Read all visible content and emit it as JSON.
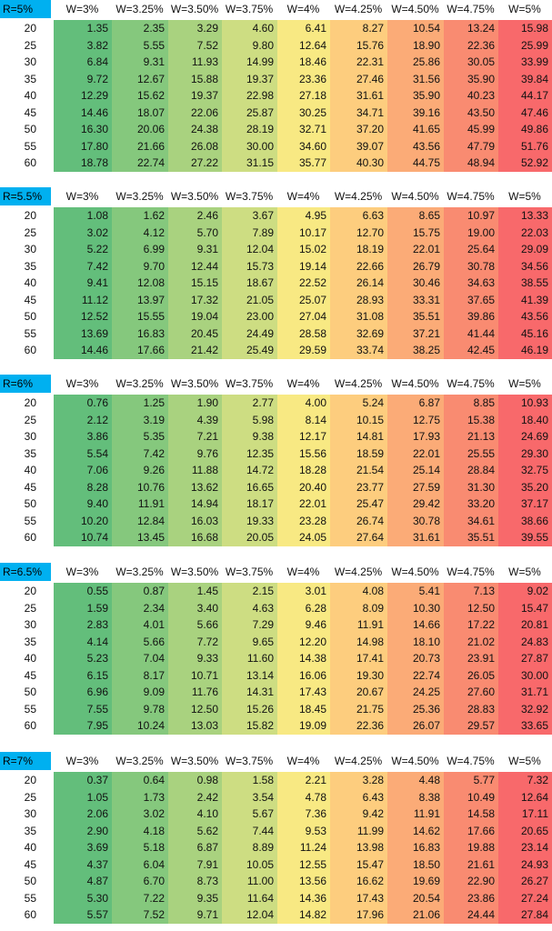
{
  "chart_data": [
    {
      "type": "heatmap",
      "title": "R=5%",
      "columns": [
        "W=3%",
        "W=3.25%",
        "W=3.50%",
        "W=3.75%",
        "W=4%",
        "W=4.25%",
        "W=4.50%",
        "W=4.75%",
        "W=5%"
      ],
      "rows": [
        "20",
        "25",
        "30",
        "35",
        "40",
        "45",
        "50",
        "55",
        "60"
      ],
      "values": [
        [
          "1.35",
          "2.35",
          "3.29",
          "4.60",
          "6.41",
          "8.27",
          "10.54",
          "13.24",
          "15.98"
        ],
        [
          "3.82",
          "5.55",
          "7.52",
          "9.80",
          "12.64",
          "15.76",
          "18.90",
          "22.36",
          "25.99"
        ],
        [
          "6.84",
          "9.31",
          "11.93",
          "14.99",
          "18.46",
          "22.31",
          "25.86",
          "30.05",
          "33.99"
        ],
        [
          "9.72",
          "12.67",
          "15.88",
          "19.37",
          "23.36",
          "27.46",
          "31.56",
          "35.90",
          "39.84"
        ],
        [
          "12.29",
          "15.62",
          "19.37",
          "22.98",
          "27.18",
          "31.61",
          "35.90",
          "40.23",
          "44.17"
        ],
        [
          "14.46",
          "18.07",
          "22.06",
          "25.87",
          "30.25",
          "34.71",
          "39.16",
          "43.50",
          "47.46"
        ],
        [
          "16.30",
          "20.06",
          "24.38",
          "28.19",
          "32.71",
          "37.20",
          "41.65",
          "45.99",
          "49.86"
        ],
        [
          "17.80",
          "21.66",
          "26.08",
          "30.00",
          "34.60",
          "39.07",
          "43.56",
          "47.79",
          "51.76"
        ],
        [
          "18.78",
          "22.74",
          "27.22",
          "31.15",
          "35.77",
          "40.30",
          "44.75",
          "48.94",
          "52.92"
        ]
      ]
    },
    {
      "type": "heatmap",
      "title": "R=5.5%",
      "columns": [
        "W=3%",
        "W=3.25%",
        "W=3.50%",
        "W=3.75%",
        "W=4%",
        "W=4.25%",
        "W=4.50%",
        "W=4.75%",
        "W=5%"
      ],
      "rows": [
        "20",
        "25",
        "30",
        "35",
        "40",
        "45",
        "50",
        "55",
        "60"
      ],
      "values": [
        [
          "1.08",
          "1.62",
          "2.46",
          "3.67",
          "4.95",
          "6.63",
          "8.65",
          "10.97",
          "13.33"
        ],
        [
          "3.02",
          "4.12",
          "5.70",
          "7.89",
          "10.17",
          "12.70",
          "15.75",
          "19.00",
          "22.03"
        ],
        [
          "5.22",
          "6.99",
          "9.31",
          "12.04",
          "15.02",
          "18.19",
          "22.01",
          "25.64",
          "29.09"
        ],
        [
          "7.42",
          "9.70",
          "12.44",
          "15.73",
          "19.14",
          "22.66",
          "26.79",
          "30.78",
          "34.56"
        ],
        [
          "9.41",
          "12.08",
          "15.15",
          "18.67",
          "22.52",
          "26.14",
          "30.46",
          "34.63",
          "38.55"
        ],
        [
          "11.12",
          "13.97",
          "17.32",
          "21.05",
          "25.07",
          "28.93",
          "33.31",
          "37.65",
          "41.39"
        ],
        [
          "12.52",
          "15.55",
          "19.04",
          "23.00",
          "27.04",
          "31.08",
          "35.51",
          "39.86",
          "43.56"
        ],
        [
          "13.69",
          "16.83",
          "20.45",
          "24.49",
          "28.58",
          "32.69",
          "37.21",
          "41.44",
          "45.16"
        ],
        [
          "14.46",
          "17.66",
          "21.42",
          "25.49",
          "29.59",
          "33.74",
          "38.25",
          "42.45",
          "46.19"
        ]
      ]
    },
    {
      "type": "heatmap",
      "title": "R=6%",
      "columns": [
        "W=3%",
        "W=3.25%",
        "W=3.50%",
        "W=3.75%",
        "W=4%",
        "W=4.25%",
        "W=4.50%",
        "W=4.75%",
        "W=5%"
      ],
      "rows": [
        "20",
        "25",
        "30",
        "35",
        "40",
        "45",
        "50",
        "55",
        "60"
      ],
      "values": [
        [
          "0.76",
          "1.25",
          "1.90",
          "2.77",
          "4.00",
          "5.24",
          "6.87",
          "8.85",
          "10.93"
        ],
        [
          "2.12",
          "3.19",
          "4.39",
          "5.98",
          "8.14",
          "10.15",
          "12.75",
          "15.38",
          "18.40"
        ],
        [
          "3.86",
          "5.35",
          "7.21",
          "9.38",
          "12.17",
          "14.81",
          "17.93",
          "21.13",
          "24.69"
        ],
        [
          "5.54",
          "7.42",
          "9.76",
          "12.35",
          "15.56",
          "18.59",
          "22.01",
          "25.55",
          "29.30"
        ],
        [
          "7.06",
          "9.26",
          "11.88",
          "14.72",
          "18.28",
          "21.54",
          "25.14",
          "28.84",
          "32.75"
        ],
        [
          "8.28",
          "10.76",
          "13.62",
          "16.65",
          "20.40",
          "23.77",
          "27.59",
          "31.30",
          "35.20"
        ],
        [
          "9.40",
          "11.91",
          "14.94",
          "18.17",
          "22.01",
          "25.47",
          "29.42",
          "33.20",
          "37.17"
        ],
        [
          "10.20",
          "12.84",
          "16.03",
          "19.33",
          "23.28",
          "26.74",
          "30.78",
          "34.61",
          "38.66"
        ],
        [
          "10.74",
          "13.45",
          "16.68",
          "20.05",
          "24.05",
          "27.64",
          "31.61",
          "35.51",
          "39.55"
        ]
      ]
    },
    {
      "type": "heatmap",
      "title": "R=6.5%",
      "columns": [
        "W=3%",
        "W=3.25%",
        "W=3.50%",
        "W=3.75%",
        "W=4%",
        "W=4.25%",
        "W=4.50%",
        "W=4.75%",
        "W=5%"
      ],
      "rows": [
        "20",
        "25",
        "30",
        "35",
        "40",
        "45",
        "50",
        "55",
        "60"
      ],
      "values": [
        [
          "0.55",
          "0.87",
          "1.45",
          "2.15",
          "3.01",
          "4.08",
          "5.41",
          "7.13",
          "9.02"
        ],
        [
          "1.59",
          "2.34",
          "3.40",
          "4.63",
          "6.28",
          "8.09",
          "10.30",
          "12.50",
          "15.47"
        ],
        [
          "2.83",
          "4.01",
          "5.66",
          "7.29",
          "9.46",
          "11.91",
          "14.66",
          "17.22",
          "20.81"
        ],
        [
          "4.14",
          "5.66",
          "7.72",
          "9.65",
          "12.20",
          "14.98",
          "18.10",
          "21.02",
          "24.83"
        ],
        [
          "5.23",
          "7.04",
          "9.33",
          "11.60",
          "14.38",
          "17.41",
          "20.73",
          "23.91",
          "27.87"
        ],
        [
          "6.15",
          "8.17",
          "10.71",
          "13.14",
          "16.06",
          "19.30",
          "22.74",
          "26.05",
          "30.00"
        ],
        [
          "6.96",
          "9.09",
          "11.76",
          "14.31",
          "17.43",
          "20.67",
          "24.25",
          "27.60",
          "31.71"
        ],
        [
          "7.55",
          "9.78",
          "12.50",
          "15.26",
          "18.45",
          "21.75",
          "25.36",
          "28.83",
          "32.92"
        ],
        [
          "7.95",
          "10.24",
          "13.03",
          "15.82",
          "19.09",
          "22.36",
          "26.07",
          "29.57",
          "33.65"
        ]
      ]
    },
    {
      "type": "heatmap",
      "title": "R=7%",
      "columns": [
        "W=3%",
        "W=3.25%",
        "W=3.50%",
        "W=3.75%",
        "W=4%",
        "W=4.25%",
        "W=4.50%",
        "W=4.75%",
        "W=5%"
      ],
      "rows": [
        "20",
        "25",
        "30",
        "35",
        "40",
        "45",
        "50",
        "55",
        "60"
      ],
      "values": [
        [
          "0.37",
          "0.64",
          "0.98",
          "1.58",
          "2.21",
          "3.28",
          "4.48",
          "5.77",
          "7.32"
        ],
        [
          "1.05",
          "1.73",
          "2.42",
          "3.54",
          "4.78",
          "6.43",
          "8.38",
          "10.49",
          "12.64"
        ],
        [
          "2.06",
          "3.02",
          "4.10",
          "5.67",
          "7.36",
          "9.42",
          "11.91",
          "14.58",
          "17.11"
        ],
        [
          "2.90",
          "4.18",
          "5.62",
          "7.44",
          "9.53",
          "11.99",
          "14.62",
          "17.66",
          "20.65"
        ],
        [
          "3.69",
          "5.18",
          "6.87",
          "8.89",
          "11.24",
          "13.98",
          "16.83",
          "19.88",
          "23.14"
        ],
        [
          "4.37",
          "6.04",
          "7.91",
          "10.05",
          "12.55",
          "15.47",
          "18.50",
          "21.61",
          "24.93"
        ],
        [
          "4.87",
          "6.70",
          "8.73",
          "11.00",
          "13.56",
          "16.62",
          "19.69",
          "22.90",
          "26.27"
        ],
        [
          "5.30",
          "7.22",
          "9.35",
          "11.64",
          "14.36",
          "17.43",
          "20.54",
          "23.86",
          "27.24"
        ],
        [
          "5.57",
          "7.52",
          "9.71",
          "12.04",
          "14.82",
          "17.96",
          "21.06",
          "24.44",
          "27.84"
        ]
      ]
    }
  ],
  "colors": {
    "column_fills": [
      "#63be7b",
      "#85c87d",
      "#a9d27f",
      "#cddd82",
      "#f8e983",
      "#fdcd7e",
      "#fbab77",
      "#f98b71",
      "#f8696b"
    ],
    "header_fill": "#00b0f0"
  }
}
